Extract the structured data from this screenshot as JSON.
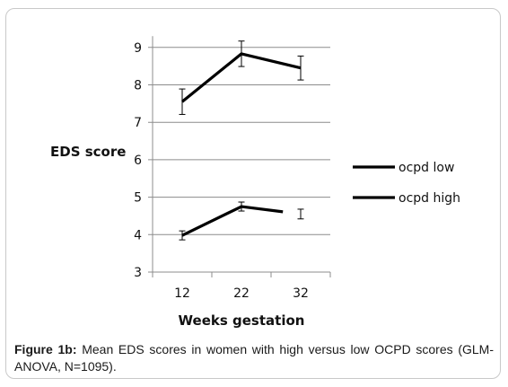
{
  "chart_data": {
    "type": "line",
    "xlabel": "Weeks gestation",
    "ylabel": "EDS score",
    "categories": [
      "12",
      "22",
      "32"
    ],
    "y_ticks": [
      "3",
      "4",
      "5",
      "6",
      "7",
      "8",
      "9"
    ],
    "ylim": [
      3,
      9.3
    ],
    "grid": "horizontal",
    "legend_placement": "right",
    "series": [
      {
        "name": "ocpd low",
        "values": [
          3.98,
          4.75,
          4.55
        ],
        "error": [
          0.12,
          0.12,
          0.13
        ],
        "color": "#000000"
      },
      {
        "name": "ocpd high",
        "values": [
          7.55,
          8.83,
          8.45
        ],
        "error": [
          0.34,
          0.34,
          0.32
        ],
        "color": "#000000"
      }
    ]
  },
  "caption": {
    "label": "Figure 1b:",
    "text": " Mean EDS scores in women with high versus low OCPD scores (GLM-ANOVA, N=1095)."
  }
}
